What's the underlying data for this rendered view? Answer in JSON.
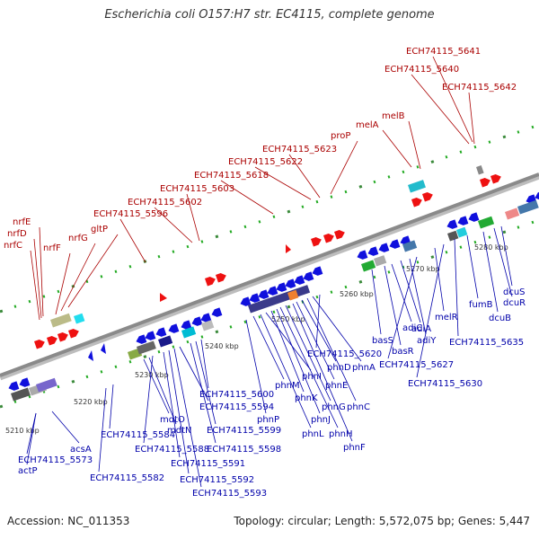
{
  "title": "Escherichia coli O157:H7 str. EC4115, complete genome",
  "accession": "Accession: NC_011353",
  "summary": "Topology: circular; Length: 5,572,075 bp; Genes: 5,447",
  "colors": {
    "top_labels": "#aa0000",
    "bottom_labels": "#0000aa",
    "forward_genes": "#ee1111",
    "reverse_genes": "#1010dd",
    "backbone": "#8a8a8a"
  },
  "ticks": [
    "5210 kbp",
    "5220 kbp",
    "5230 kbp",
    "5240 kbp",
    "5250 kbp",
    "5260 kbp",
    "5270 kbp",
    "5280 kbp"
  ],
  "top_labels": [
    "nrfE",
    "nrfD",
    "nrfC",
    "nrfF",
    "nrfG",
    "gltP",
    "ECH74115_5596",
    "ECH74115_5602",
    "ECH74115_5603",
    "ECH74115_5618",
    "ECH74115_5622",
    "ECH74115_5623",
    "proP",
    "melA",
    "melB",
    "ECH74115_5640",
    "ECH74115_5641",
    "ECH74115_5642"
  ],
  "bottom_labels": [
    "actP",
    "ECH74115_5573",
    "acsA",
    "ECH74115_5582",
    "ECH74115_5584",
    "mdtO",
    "mdtN",
    "ECH74115_5588",
    "ECH74115_5591",
    "ECH74115_5592",
    "ECH74115_5593",
    "ECH74115_5594",
    "ECH74115_5598",
    "ECH74115_5599",
    "ECH74115_5600",
    "phnP",
    "phnM",
    "phnL",
    "phnI",
    "phnK",
    "phnJ",
    "phnH",
    "phnG",
    "phnF",
    "phnE",
    "phnD",
    "phnC",
    "phnA",
    "ECH74115_5620",
    "basS",
    "basR",
    "adiC",
    "adiA",
    "adiY",
    "ECH74115_5627",
    "melR",
    "ECH74115_5630",
    "ECH74115_5635",
    "fumB",
    "dcuB",
    "dcuR",
    "dcuS"
  ]
}
